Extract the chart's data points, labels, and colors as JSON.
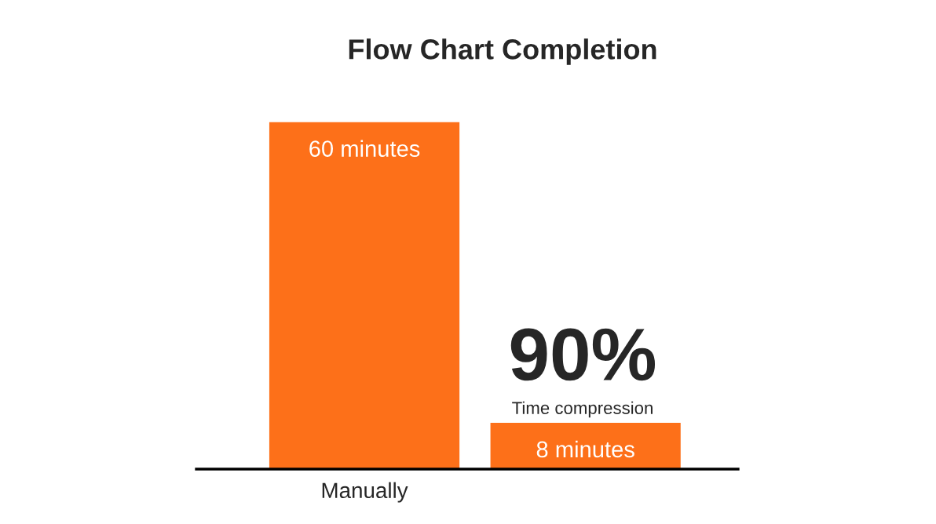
{
  "chart_data": {
    "type": "bar",
    "title": "Flow Chart Completion",
    "categories": [
      "Manually",
      null
    ],
    "values": [
      60,
      8
    ],
    "value_labels": [
      "60 minutes",
      "8 minutes"
    ],
    "color": "#fd7019",
    "annotations": [
      "90%",
      "Time compression"
    ],
    "grid": false,
    "legend": false
  }
}
